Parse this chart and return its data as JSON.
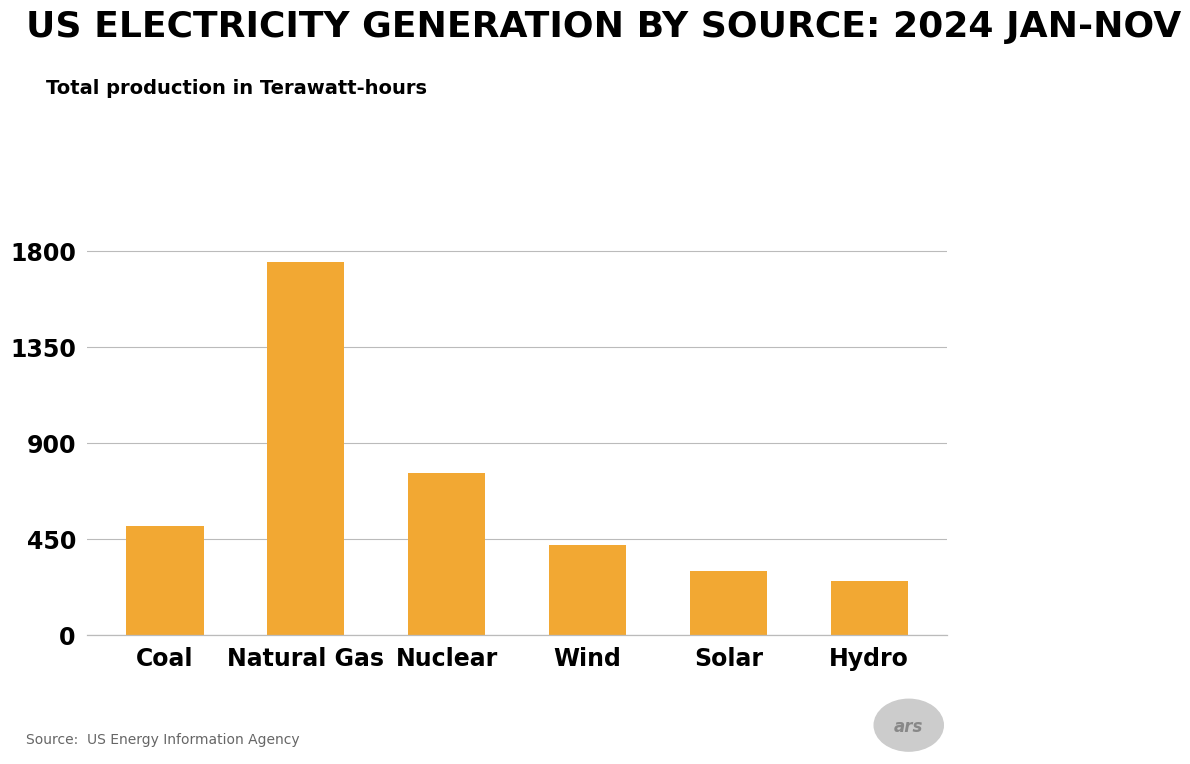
{
  "title": "US ELECTRICITY GENERATION BY SOURCE: 2024 JAN-NOV",
  "subtitle": "Total production in Terawatt-hours",
  "source": "Source:  US Energy Information Agency",
  "categories": [
    "Coal",
    "Natural Gas",
    "Nuclear",
    "Wind",
    "Solar",
    "Hydro"
  ],
  "values": [
    510,
    1750,
    760,
    420,
    300,
    255
  ],
  "bar_color": "#F2A833",
  "background_color": "#FFFFFF",
  "yticks": [
    0,
    450,
    900,
    1350,
    1800
  ],
  "ylim": [
    0,
    1980
  ],
  "title_fontsize": 26,
  "subtitle_fontsize": 14,
  "tick_fontsize": 17,
  "xlabel_fontsize": 17,
  "source_fontsize": 10
}
